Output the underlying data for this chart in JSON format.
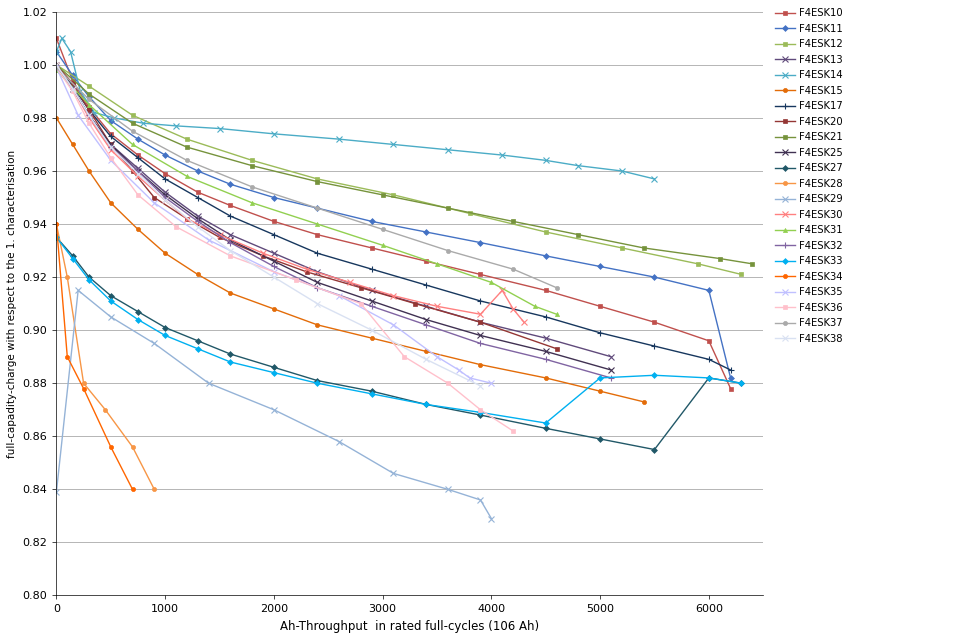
{
  "xlabel": "Ah-Throughput  in rated full-cycles (106 Ah)",
  "ylabel": "full-capadity-charge with respect to the 1. characterisation",
  "xlim": [
    0,
    6500
  ],
  "ylim": [
    0.8,
    1.02
  ],
  "yticks": [
    0.8,
    0.82,
    0.84,
    0.86,
    0.88,
    0.9,
    0.92,
    0.94,
    0.96,
    0.98,
    1.0,
    1.02
  ],
  "xticks": [
    0,
    1000,
    2000,
    3000,
    4000,
    5000,
    6000
  ],
  "series": [
    {
      "name": "F4ESK10",
      "color": "#C0504D",
      "marker": "s",
      "ms": 3,
      "lw": 1.0,
      "x": [
        0,
        150,
        300,
        500,
        750,
        1000,
        1300,
        1600,
        2000,
        2400,
        2900,
        3400,
        3900,
        4500,
        5000,
        5500,
        6000,
        6200
      ],
      "y": [
        1.01,
        0.994,
        0.984,
        0.974,
        0.966,
        0.959,
        0.952,
        0.947,
        0.941,
        0.936,
        0.931,
        0.926,
        0.921,
        0.915,
        0.909,
        0.903,
        0.896,
        0.878
      ]
    },
    {
      "name": "F4ESK11",
      "color": "#4472C4",
      "marker": "D",
      "ms": 3,
      "lw": 1.0,
      "x": [
        0,
        150,
        300,
        500,
        750,
        1000,
        1300,
        1600,
        2000,
        2400,
        2900,
        3400,
        3900,
        4500,
        5000,
        5500,
        6000,
        6200
      ],
      "y": [
        1.005,
        0.996,
        0.988,
        0.979,
        0.972,
        0.966,
        0.96,
        0.955,
        0.95,
        0.946,
        0.941,
        0.937,
        0.933,
        0.928,
        0.924,
        0.92,
        0.915,
        0.882
      ]
    },
    {
      "name": "F4ESK12",
      "color": "#9BBB59",
      "marker": "s",
      "ms": 3,
      "lw": 1.0,
      "x": [
        0,
        300,
        700,
        1200,
        1800,
        2400,
        3100,
        3800,
        4500,
        5200,
        5900,
        6300
      ],
      "y": [
        1.0,
        0.992,
        0.981,
        0.972,
        0.964,
        0.957,
        0.951,
        0.944,
        0.937,
        0.931,
        0.925,
        0.921
      ]
    },
    {
      "name": "F4ESK13",
      "color": "#604A7B",
      "marker": "x",
      "ms": 4,
      "lw": 1.0,
      "x": [
        0,
        150,
        300,
        500,
        750,
        1000,
        1300,
        1600,
        2000,
        2400,
        2900,
        3400,
        3900,
        4500,
        5100
      ],
      "y": [
        0.999,
        0.991,
        0.981,
        0.97,
        0.961,
        0.952,
        0.943,
        0.936,
        0.929,
        0.922,
        0.915,
        0.909,
        0.903,
        0.897,
        0.89
      ]
    },
    {
      "name": "F4ESK14",
      "color": "#4BACC6",
      "marker": "x",
      "ms": 4,
      "lw": 1.0,
      "x": [
        0,
        50,
        130,
        220,
        350,
        530,
        800,
        1100,
        1500,
        2000,
        2600,
        3100,
        3600,
        4100,
        4500,
        4800,
        5200,
        5500
      ],
      "y": [
        1.005,
        1.01,
        1.005,
        0.99,
        0.982,
        0.98,
        0.978,
        0.977,
        0.976,
        0.974,
        0.972,
        0.97,
        0.968,
        0.966,
        0.964,
        0.962,
        0.96,
        0.957
      ]
    },
    {
      "name": "F4ESK15",
      "color": "#E36C09",
      "marker": "o",
      "ms": 3,
      "lw": 1.0,
      "x": [
        0,
        150,
        300,
        500,
        750,
        1000,
        1300,
        1600,
        2000,
        2400,
        2900,
        3400,
        3900,
        4500,
        5000,
        5400
      ],
      "y": [
        0.98,
        0.97,
        0.96,
        0.948,
        0.938,
        0.929,
        0.921,
        0.914,
        0.908,
        0.902,
        0.897,
        0.892,
        0.887,
        0.882,
        0.877,
        0.873
      ]
    },
    {
      "name": "F4ESK17",
      "color": "#17375E",
      "marker": "+",
      "ms": 4,
      "lw": 1.0,
      "x": [
        0,
        150,
        300,
        500,
        750,
        1000,
        1300,
        1600,
        2000,
        2400,
        2900,
        3400,
        3900,
        4500,
        5000,
        5500,
        6000,
        6200
      ],
      "y": [
        1.0,
        0.992,
        0.983,
        0.973,
        0.965,
        0.957,
        0.95,
        0.943,
        0.936,
        0.929,
        0.923,
        0.917,
        0.911,
        0.905,
        0.899,
        0.894,
        0.889,
        0.885
      ]
    },
    {
      "name": "F4ESK20",
      "color": "#943634",
      "marker": "s",
      "ms": 3,
      "lw": 1.0,
      "x": [
        0,
        150,
        300,
        500,
        700,
        900,
        1200,
        1500,
        1900,
        2300,
        2800,
        3300,
        3900,
        4600
      ],
      "y": [
        1.0,
        0.993,
        0.983,
        0.97,
        0.96,
        0.95,
        0.942,
        0.935,
        0.928,
        0.922,
        0.916,
        0.91,
        0.903,
        0.893
      ]
    },
    {
      "name": "F4ESK21",
      "color": "#76933C",
      "marker": "s",
      "ms": 3,
      "lw": 1.0,
      "x": [
        0,
        300,
        700,
        1200,
        1800,
        2400,
        3000,
        3600,
        4200,
        4800,
        5400,
        6100,
        6400
      ],
      "y": [
        1.0,
        0.989,
        0.978,
        0.969,
        0.962,
        0.956,
        0.951,
        0.946,
        0.941,
        0.936,
        0.931,
        0.927,
        0.925
      ]
    },
    {
      "name": "F4ESK25",
      "color": "#403152",
      "marker": "x",
      "ms": 4,
      "lw": 1.0,
      "x": [
        0,
        150,
        300,
        500,
        750,
        1000,
        1300,
        1600,
        2000,
        2400,
        2900,
        3400,
        3900,
        4500,
        5100
      ],
      "y": [
        1.0,
        0.991,
        0.981,
        0.97,
        0.96,
        0.951,
        0.942,
        0.934,
        0.926,
        0.918,
        0.911,
        0.904,
        0.898,
        0.892,
        0.885
      ]
    },
    {
      "name": "F4ESK27",
      "color": "#215868",
      "marker": "D",
      "ms": 3,
      "lw": 1.0,
      "x": [
        0,
        150,
        300,
        500,
        750,
        1000,
        1300,
        1600,
        2000,
        2400,
        2900,
        3400,
        3900,
        4500,
        5000,
        5500,
        6000,
        6300
      ],
      "y": [
        0.935,
        0.928,
        0.92,
        0.913,
        0.907,
        0.901,
        0.896,
        0.891,
        0.886,
        0.881,
        0.877,
        0.872,
        0.868,
        0.863,
        0.859,
        0.855,
        0.882,
        0.88
      ]
    },
    {
      "name": "F4ESK28",
      "color": "#F79646",
      "marker": "o",
      "ms": 3,
      "lw": 1.0,
      "x": [
        0,
        100,
        250,
        450,
        700,
        900
      ],
      "y": [
        0.94,
        0.92,
        0.88,
        0.87,
        0.856,
        0.84
      ]
    },
    {
      "name": "F4ESK29",
      "color": "#95B3D7",
      "marker": "x",
      "ms": 4,
      "lw": 1.0,
      "x": [
        0,
        200,
        500,
        900,
        1400,
        2000,
        2600,
        3100,
        3600,
        3900,
        4000
      ],
      "y": [
        0.839,
        0.915,
        0.905,
        0.895,
        0.88,
        0.87,
        0.858,
        0.846,
        0.84,
        0.836,
        0.829
      ]
    },
    {
      "name": "F4ESK30",
      "color": "#FF8080",
      "marker": "x",
      "ms": 4,
      "lw": 1.0,
      "x": [
        0,
        150,
        300,
        500,
        750,
        1000,
        1200,
        1500,
        1900,
        2300,
        2700,
        3100,
        3500,
        3900,
        4100,
        4200,
        4300
      ],
      "y": [
        1.0,
        0.991,
        0.98,
        0.968,
        0.958,
        0.949,
        0.942,
        0.936,
        0.929,
        0.923,
        0.918,
        0.913,
        0.909,
        0.906,
        0.915,
        0.908,
        0.903
      ]
    },
    {
      "name": "F4ESK31",
      "color": "#92D050",
      "marker": "^",
      "ms": 3,
      "lw": 1.0,
      "x": [
        0,
        300,
        700,
        1200,
        1800,
        2400,
        3000,
        3500,
        4000,
        4400,
        4600
      ],
      "y": [
        0.998,
        0.985,
        0.97,
        0.958,
        0.948,
        0.94,
        0.932,
        0.925,
        0.918,
        0.909,
        0.906
      ]
    },
    {
      "name": "F4ESK32",
      "color": "#8064A2",
      "marker": "+",
      "ms": 4,
      "lw": 1.0,
      "x": [
        0,
        150,
        300,
        500,
        750,
        1000,
        1300,
        1600,
        2000,
        2400,
        2900,
        3400,
        3900,
        4500,
        5100
      ],
      "y": [
        1.0,
        0.991,
        0.981,
        0.969,
        0.96,
        0.95,
        0.941,
        0.933,
        0.924,
        0.916,
        0.909,
        0.902,
        0.895,
        0.889,
        0.882
      ]
    },
    {
      "name": "F4ESK33",
      "color": "#00B0F0",
      "marker": "D",
      "ms": 3,
      "lw": 1.0,
      "x": [
        0,
        150,
        300,
        500,
        750,
        1000,
        1300,
        1600,
        2000,
        2400,
        2900,
        3400,
        3900,
        4500,
        5000,
        5500,
        6000,
        6300
      ],
      "y": [
        0.935,
        0.927,
        0.919,
        0.911,
        0.904,
        0.898,
        0.893,
        0.888,
        0.884,
        0.88,
        0.876,
        0.872,
        0.869,
        0.865,
        0.882,
        0.883,
        0.882,
        0.88
      ]
    },
    {
      "name": "F4ESK34",
      "color": "#FF6600",
      "marker": "o",
      "ms": 3,
      "lw": 1.0,
      "x": [
        0,
        100,
        250,
        500,
        700
      ],
      "y": [
        0.94,
        0.89,
        0.878,
        0.856,
        0.84
      ]
    },
    {
      "name": "F4ESK35",
      "color": "#C0C0FF",
      "marker": "x",
      "ms": 4,
      "lw": 1.0,
      "x": [
        0,
        200,
        500,
        900,
        1400,
        2000,
        2600,
        3100,
        3500,
        3700,
        3800,
        4000
      ],
      "y": [
        0.999,
        0.981,
        0.964,
        0.948,
        0.934,
        0.922,
        0.913,
        0.902,
        0.89,
        0.885,
        0.882,
        0.88
      ]
    },
    {
      "name": "F4ESK36",
      "color": "#FFC0CB",
      "marker": "s",
      "ms": 3,
      "lw": 1.0,
      "x": [
        0,
        150,
        300,
        500,
        750,
        1100,
        1600,
        2200,
        2800,
        3200,
        3600,
        3900,
        4200
      ],
      "y": [
        0.999,
        0.99,
        0.978,
        0.965,
        0.951,
        0.939,
        0.928,
        0.919,
        0.91,
        0.89,
        0.88,
        0.87,
        0.862
      ]
    },
    {
      "name": "F4ESK37",
      "color": "#AAAAAA",
      "marker": "o",
      "ms": 3,
      "lw": 1.0,
      "x": [
        0,
        300,
        700,
        1200,
        1800,
        2400,
        3000,
        3600,
        4200,
        4600
      ],
      "y": [
        0.999,
        0.987,
        0.975,
        0.964,
        0.954,
        0.946,
        0.938,
        0.93,
        0.923,
        0.916
      ]
    },
    {
      "name": "F4ESK38",
      "color": "#D9E1F2",
      "marker": "x",
      "ms": 4,
      "lw": 1.0,
      "x": [
        0,
        150,
        300,
        500,
        750,
        1000,
        1300,
        1600,
        2000,
        2400,
        2900,
        3400,
        3900
      ],
      "y": [
        1.0,
        0.991,
        0.981,
        0.969,
        0.959,
        0.949,
        0.939,
        0.93,
        0.92,
        0.91,
        0.9,
        0.889,
        0.879
      ]
    }
  ]
}
